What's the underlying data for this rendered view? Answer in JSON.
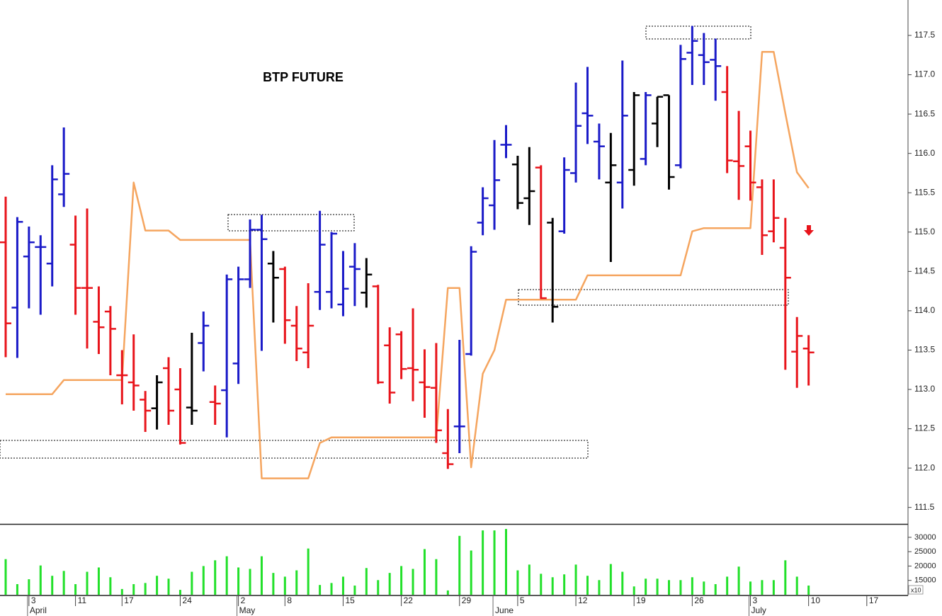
{
  "chart_data": [
    {
      "type": "ohlc",
      "title": "BTP FUTURE",
      "ylim": [
        111.29,
        117.95
      ],
      "yticks": [
        111.5,
        {
          "value": 112,
          "label": "112.0"
        },
        112.5,
        {
          "value": 113,
          "label": "113.0"
        },
        113.5,
        {
          "value": 114,
          "label": "114.0"
        },
        114.5,
        {
          "value": 115,
          "label": "115.0"
        },
        115.5,
        {
          "value": 116,
          "label": "116.0"
        },
        116.5,
        {
          "value": 117,
          "label": "117.0"
        },
        117.5
      ],
      "open": [
        114.87,
        114.04,
        114.69,
        114.81,
        114.6,
        115.48,
        114.84,
        114.29,
        113.86,
        113.99,
        113.18,
        113.09,
        112.87,
        112.76,
        113.27,
        113.0,
        112.77,
        113.59,
        112.84,
        112.99,
        113.33,
        114.4,
        115.03,
        114.6,
        114.53,
        113.81,
        113.47,
        114.24,
        114.24,
        114.08,
        114.56,
        114.23,
        114.31,
        113.56,
        113.7,
        113.27,
        113.09,
        113.02,
        112.19,
        112.53,
        113.45,
        115.12,
        115.34,
        116.11,
        115.86,
        115.43,
        115.82,
        115.12,
        115.01,
        115.75,
        116.51,
        116.15,
        115.63,
        115.63,
        115.79,
        115.93,
        116.38,
        116.74,
        115.85,
        117.28,
        117.25,
        117.19,
        116.78,
        115.9,
        116.09,
        115.57,
        115.01,
        114.8,
        113.48,
        113.52,
        null,
        null,
        null,
        null,
        null
      ],
      "high": [
        115.45,
        115.19,
        115.07,
        114.96,
        115.85,
        116.33,
        115.21,
        115.3,
        114.31,
        114.06,
        113.5,
        113.7,
        112.98,
        113.18,
        113.41,
        113.27,
        113.72,
        113.99,
        113.05,
        114.46,
        114.56,
        115.16,
        115.22,
        114.76,
        114.56,
        114.06,
        114.35,
        115.27,
        115.0,
        114.76,
        114.86,
        114.67,
        114.33,
        113.79,
        113.74,
        114.03,
        113.51,
        113.59,
        112.75,
        113.63,
        114.82,
        115.57,
        116.17,
        116.36,
        115.97,
        116.08,
        115.85,
        115.18,
        115.95,
        116.9,
        117.1,
        116.38,
        116.26,
        117.18,
        116.78,
        116.78,
        116.72,
        116.74,
        117.38,
        117.62,
        117.53,
        117.46,
        117.11,
        116.54,
        116.29,
        115.67,
        115.67,
        115.18,
        113.92,
        113.69,
        null,
        null,
        null,
        null,
        null
      ],
      "low": [
        113.41,
        113.4,
        114.03,
        113.95,
        114.31,
        115.32,
        113.95,
        113.52,
        113.45,
        113.18,
        112.81,
        112.73,
        112.46,
        112.49,
        112.55,
        112.3,
        112.55,
        113.23,
        112.55,
        112.39,
        113.07,
        114.29,
        113.49,
        113.85,
        113.58,
        113.36,
        113.27,
        114.01,
        114.03,
        113.93,
        114.06,
        114.04,
        113.07,
        112.82,
        113.13,
        112.85,
        112.64,
        112.32,
        111.99,
        112.19,
        113.43,
        114.96,
        115.03,
        115.94,
        115.29,
        115.09,
        114.15,
        113.85,
        114.98,
        115.63,
        116.12,
        115.67,
        114.62,
        115.3,
        115.59,
        115.85,
        116.08,
        115.54,
        115.81,
        116.87,
        116.87,
        116.67,
        115.75,
        115.41,
        115.4,
        114.71,
        114.87,
        113.25,
        113.02,
        113.05,
        null,
        null,
        null,
        null,
        null
      ],
      "close": [
        113.84,
        115.13,
        114.87,
        114.81,
        115.67,
        115.74,
        114.29,
        114.29,
        113.79,
        113.77,
        113.18,
        113.05,
        112.73,
        113.09,
        112.73,
        112.32,
        112.73,
        113.81,
        112.82,
        114.4,
        114.4,
        115.03,
        114.91,
        114.42,
        113.88,
        113.52,
        113.81,
        114.84,
        114.98,
        114.28,
        114.53,
        114.46,
        113.09,
        112.96,
        113.26,
        113.25,
        113.03,
        112.48,
        112.05,
        112.53,
        114.75,
        115.43,
        115.66,
        116.11,
        115.37,
        115.52,
        114.16,
        114.05,
        115.79,
        116.35,
        116.48,
        116.09,
        115.85,
        116.48,
        116.74,
        116.74,
        116.72,
        115.7,
        117.2,
        117.43,
        117.16,
        117.11,
        115.91,
        115.84,
        115.63,
        114.96,
        115.18,
        114.42,
        113.68,
        113.47,
        null,
        null,
        null,
        null,
        null
      ],
      "bar_colors": [
        "#e8141b",
        "#1a1ac8",
        "#1a1ac8",
        "#1a1ac8",
        "#1a1ac8",
        "#1a1ac8",
        "#e8141b",
        "#e8141b",
        "#e8141b",
        "#e8141b",
        "#e8141b",
        "#e8141b",
        "#e8141b",
        "#000000",
        "#e8141b",
        "#e8141b",
        "#000000",
        "#1a1ac8",
        "#e8141b",
        "#1a1ac8",
        "#1a1ac8",
        "#1a1ac8",
        "#1a1ac8",
        "#000000",
        "#e8141b",
        "#e8141b",
        "#e8141b",
        "#1a1ac8",
        "#1a1ac8",
        "#1a1ac8",
        "#1a1ac8",
        "#000000",
        "#e8141b",
        "#e8141b",
        "#e8141b",
        "#e8141b",
        "#e8141b",
        "#e8141b",
        "#e8141b",
        "#1a1ac8",
        "#1a1ac8",
        "#1a1ac8",
        "#1a1ac8",
        "#1a1ac8",
        "#000000",
        "#000000",
        "#e8141b",
        "#000000",
        "#1a1ac8",
        "#1a1ac8",
        "#1a1ac8",
        "#1a1ac8",
        "#000000",
        "#1a1ac8",
        "#000000",
        "#1a1ac8",
        "#000000",
        "#000000",
        "#1a1ac8",
        "#1a1ac8",
        "#1a1ac8",
        "#1a1ac8",
        "#e8141b",
        "#e8141b",
        "#e8141b",
        "#e8141b",
        "#e8141b",
        "#e8141b",
        "#e8141b",
        "#e8141b",
        null,
        null,
        null,
        null,
        null
      ],
      "overlay": {
        "color": "#f5a55f",
        "values": [
          112.94,
          112.94,
          112.94,
          112.94,
          112.94,
          113.12,
          113.12,
          113.12,
          113.12,
          113.12,
          113.12,
          115.63,
          115.02,
          115.02,
          115.02,
          114.9,
          114.9,
          114.9,
          114.9,
          114.9,
          114.9,
          114.9,
          111.87,
          111.87,
          111.87,
          111.87,
          111.87,
          112.32,
          112.39,
          112.39,
          112.39,
          112.39,
          112.39,
          112.39,
          112.39,
          112.39,
          112.39,
          112.39,
          114.29,
          114.29,
          112.01,
          113.2,
          113.5,
          114.14,
          114.14,
          114.14,
          114.14,
          114.14,
          114.14,
          114.14,
          114.45,
          114.45,
          114.45,
          114.45,
          114.45,
          114.45,
          114.45,
          114.45,
          114.45,
          115.01,
          115.05,
          115.05,
          115.05,
          115.05,
          115.05,
          117.29,
          117.29,
          116.51,
          115.76,
          115.56,
          null,
          null,
          null,
          null,
          null
        ]
      }
    },
    {
      "type": "bar",
      "color": "#22e02a",
      "axis_note": "x10",
      "ylim": [
        10000,
        34400
      ],
      "yticks": [
        15000,
        20000,
        25000,
        30000
      ],
      "categories": [
        null,
        null,
        "3",
        null,
        null,
        null,
        "11",
        null,
        null,
        null,
        "17",
        null,
        null,
        null,
        null,
        "24",
        null,
        null,
        null,
        null,
        "2",
        null,
        null,
        null,
        "8",
        null,
        null,
        null,
        null,
        "15",
        null,
        null,
        null,
        null,
        "22",
        null,
        null,
        null,
        null,
        "29",
        null,
        null,
        null,
        null,
        "5",
        null,
        null,
        null,
        null,
        "12",
        null,
        null,
        null,
        null,
        "19",
        null,
        null,
        null,
        null,
        "26",
        null,
        null,
        null,
        null,
        "3",
        null,
        null,
        null,
        null,
        "10",
        null,
        null,
        null,
        null,
        "17"
      ],
      "months": [
        null,
        null,
        "April",
        null,
        null,
        null,
        null,
        null,
        null,
        null,
        null,
        null,
        null,
        null,
        null,
        null,
        null,
        null,
        null,
        null,
        "May",
        null,
        null,
        null,
        null,
        null,
        null,
        null,
        null,
        null,
        null,
        null,
        null,
        null,
        null,
        null,
        null,
        null,
        null,
        null,
        null,
        null,
        "June",
        null,
        null,
        null,
        null,
        null,
        null,
        null,
        null,
        null,
        null,
        null,
        null,
        null,
        null,
        null,
        null,
        null,
        null,
        null,
        null,
        null,
        "July",
        null,
        null,
        null,
        null,
        null,
        null,
        null,
        null,
        null,
        null
      ],
      "values": [
        22400,
        13700,
        15400,
        20200,
        16600,
        18300,
        13700,
        18000,
        19500,
        16100,
        12000,
        13700,
        14100,
        16600,
        15600,
        11700,
        18000,
        20000,
        22000,
        23400,
        19500,
        19000,
        23400,
        17600,
        16300,
        18500,
        26100,
        13400,
        14100,
        16300,
        13200,
        19300,
        15100,
        17600,
        20000,
        19000,
        25900,
        22400,
        11500,
        30500,
        25400,
        32400,
        32400,
        32900,
        18500,
        20500,
        17300,
        16100,
        17100,
        20500,
        16600,
        15100,
        20700,
        18000,
        12900,
        15600,
        15600,
        15100,
        15100,
        16100,
        14600,
        13700,
        16300,
        19800,
        14600,
        15100,
        15100,
        22000,
        16300,
        13200,
        null,
        null,
        null,
        null,
        null
      ]
    }
  ]
}
